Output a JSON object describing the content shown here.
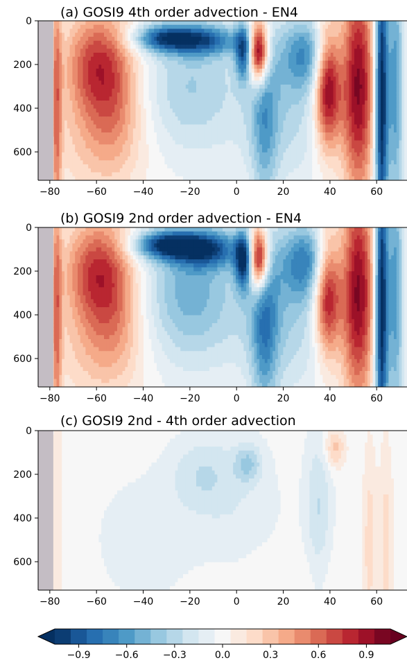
{
  "chart_data": [
    {
      "type": "heatmap",
      "title": "(a) GOSI9 4th order advection - EN4",
      "xlabel": "",
      "ylabel": "",
      "xlim": [
        -85,
        73
      ],
      "ylim": [
        730,
        0
      ],
      "x_ticks": [
        -80,
        -60,
        -40,
        -20,
        0,
        20,
        40,
        60
      ],
      "y_ticks": [
        0,
        200,
        400,
        600
      ],
      "x_tick_labels": [
        "−80",
        "−60",
        "−40",
        "−20",
        "0",
        "20",
        "40",
        "60"
      ],
      "y_tick_labels": [
        "0",
        "200",
        "400",
        "600"
      ],
      "land_mask_x": [
        -85,
        -78.5
      ],
      "features": [
        {
          "x": -77,
          "y": 400,
          "sx": 1.5,
          "sy": 450,
          "v": 0.5
        },
        {
          "x": -62,
          "y": 200,
          "sx": 9,
          "sy": 170,
          "v": 0.6
        },
        {
          "x": -52,
          "y": 300,
          "sx": 8,
          "sy": 230,
          "v": 0.4
        },
        {
          "x": -60,
          "y": 560,
          "sx": 14,
          "sy": 180,
          "v": 0.25
        },
        {
          "x": -30,
          "y": 80,
          "sx": 10,
          "sy": 45,
          "v": -0.85
        },
        {
          "x": -12,
          "y": 90,
          "sx": 10,
          "sy": 50,
          "v": -0.6
        },
        {
          "x": -20,
          "y": 300,
          "sx": 14,
          "sy": 220,
          "v": -0.35
        },
        {
          "x": 3,
          "y": 140,
          "sx": 2.5,
          "sy": 90,
          "v": -0.8
        },
        {
          "x": 9.5,
          "y": 140,
          "sx": 3,
          "sy": 100,
          "v": 1.3
        },
        {
          "x": 12,
          "y": 450,
          "sx": 4,
          "sy": 300,
          "v": -0.4
        },
        {
          "x": 30,
          "y": 150,
          "sx": 8,
          "sy": 120,
          "v": -0.55
        },
        {
          "x": 20,
          "y": 400,
          "sx": 14,
          "sy": 250,
          "v": -0.3
        },
        {
          "x": 39,
          "y": 300,
          "sx": 4,
          "sy": 200,
          "v": 1.1
        },
        {
          "x": 52,
          "y": 300,
          "sx": 5,
          "sy": 350,
          "v": 1.0
        },
        {
          "x": 62,
          "y": 350,
          "sx": 2,
          "sy": 500,
          "v": -1.2
        },
        {
          "x": 68,
          "y": 300,
          "sx": 2.5,
          "sy": 450,
          "v": -0.6
        }
      ]
    },
    {
      "type": "heatmap",
      "title": "(b) GOSI9 2nd order advection - EN4",
      "xlabel": "",
      "ylabel": "",
      "xlim": [
        -85,
        73
      ],
      "ylim": [
        730,
        0
      ],
      "x_ticks": [
        -80,
        -60,
        -40,
        -20,
        0,
        20,
        40,
        60
      ],
      "y_ticks": [
        0,
        200,
        400,
        600
      ],
      "x_tick_labels": [
        "−80",
        "−60",
        "−40",
        "−20",
        "0",
        "20",
        "40",
        "60"
      ],
      "y_tick_labels": [
        "0",
        "200",
        "400",
        "600"
      ],
      "land_mask_x": [
        -85,
        -78.5
      ],
      "features": [
        {
          "x": -77,
          "y": 400,
          "sx": 1.5,
          "sy": 450,
          "v": 0.5
        },
        {
          "x": -62,
          "y": 200,
          "sx": 9,
          "sy": 170,
          "v": 0.6
        },
        {
          "x": -52,
          "y": 300,
          "sx": 8,
          "sy": 230,
          "v": 0.4
        },
        {
          "x": -60,
          "y": 560,
          "sx": 14,
          "sy": 180,
          "v": 0.25
        },
        {
          "x": -30,
          "y": 80,
          "sx": 10,
          "sy": 45,
          "v": -0.9
        },
        {
          "x": -12,
          "y": 100,
          "sx": 10,
          "sy": 60,
          "v": -0.7
        },
        {
          "x": -20,
          "y": 300,
          "sx": 14,
          "sy": 230,
          "v": -0.5
        },
        {
          "x": 3,
          "y": 150,
          "sx": 2.5,
          "sy": 90,
          "v": -0.95
        },
        {
          "x": 9.5,
          "y": 140,
          "sx": 3,
          "sy": 100,
          "v": 1.3
        },
        {
          "x": 12,
          "y": 450,
          "sx": 4,
          "sy": 300,
          "v": -0.5
        },
        {
          "x": 30,
          "y": 150,
          "sx": 8,
          "sy": 120,
          "v": -0.6
        },
        {
          "x": 20,
          "y": 400,
          "sx": 14,
          "sy": 250,
          "v": -0.35
        },
        {
          "x": 39,
          "y": 300,
          "sx": 4,
          "sy": 200,
          "v": 1.0
        },
        {
          "x": 52,
          "y": 300,
          "sx": 5,
          "sy": 350,
          "v": 1.0
        },
        {
          "x": 62,
          "y": 350,
          "sx": 2,
          "sy": 500,
          "v": -1.2
        },
        {
          "x": 68,
          "y": 300,
          "sx": 2.5,
          "sy": 450,
          "v": -0.6
        }
      ]
    },
    {
      "type": "heatmap",
      "title": "(c) GOSI9 2nd - 4th order advection",
      "xlabel": "",
      "ylabel": "",
      "xlim": [
        -85,
        73
      ],
      "ylim": [
        730,
        0
      ],
      "x_ticks": [
        -80,
        -60,
        -40,
        -20,
        0,
        20,
        40,
        60
      ],
      "y_ticks": [
        0,
        200,
        400,
        600
      ],
      "x_tick_labels": [
        "−80",
        "−60",
        "−40",
        "−20",
        "0",
        "20",
        "40",
        "60"
      ],
      "y_tick_labels": [
        "0",
        "200",
        "400",
        "600"
      ],
      "land_mask_x": [
        -85,
        -78.5
      ],
      "features": [
        {
          "x": -77,
          "y": 400,
          "sx": 3,
          "sy": 500,
          "v": 0.08
        },
        {
          "x": -40,
          "y": 500,
          "sx": 14,
          "sy": 200,
          "v": -0.12
        },
        {
          "x": -15,
          "y": 200,
          "sx": 10,
          "sy": 120,
          "v": -0.2
        },
        {
          "x": 5,
          "y": 150,
          "sx": 4,
          "sy": 60,
          "v": -0.3
        },
        {
          "x": 0,
          "y": 350,
          "sx": 14,
          "sy": 250,
          "v": -0.12
        },
        {
          "x": 35,
          "y": 350,
          "sx": 4,
          "sy": 250,
          "v": -0.25
        },
        {
          "x": 42,
          "y": 80,
          "sx": 3,
          "sy": 60,
          "v": 0.3
        },
        {
          "x": 57,
          "y": 500,
          "sx": 2,
          "sy": 300,
          "v": 0.2
        },
        {
          "x": 64,
          "y": 500,
          "sx": 2,
          "sy": 300,
          "v": 0.2
        },
        {
          "x": 20,
          "y": 650,
          "sx": 20,
          "sy": 100,
          "v": 0.05
        }
      ]
    }
  ],
  "colorbar": {
    "min": -1.05,
    "max": 1.05,
    "step": 0.1,
    "extend": "both",
    "tick_values": [
      -0.9,
      -0.6,
      -0.3,
      0.0,
      0.3,
      0.6,
      0.9
    ],
    "tick_labels": [
      "−0.9",
      "−0.6",
      "−0.3",
      "0.0",
      "0.3",
      "0.6",
      "0.9"
    ],
    "colormap": "RdBu_r"
  },
  "colors": {
    "land": "#c4bdc4",
    "axis": "#000000"
  }
}
